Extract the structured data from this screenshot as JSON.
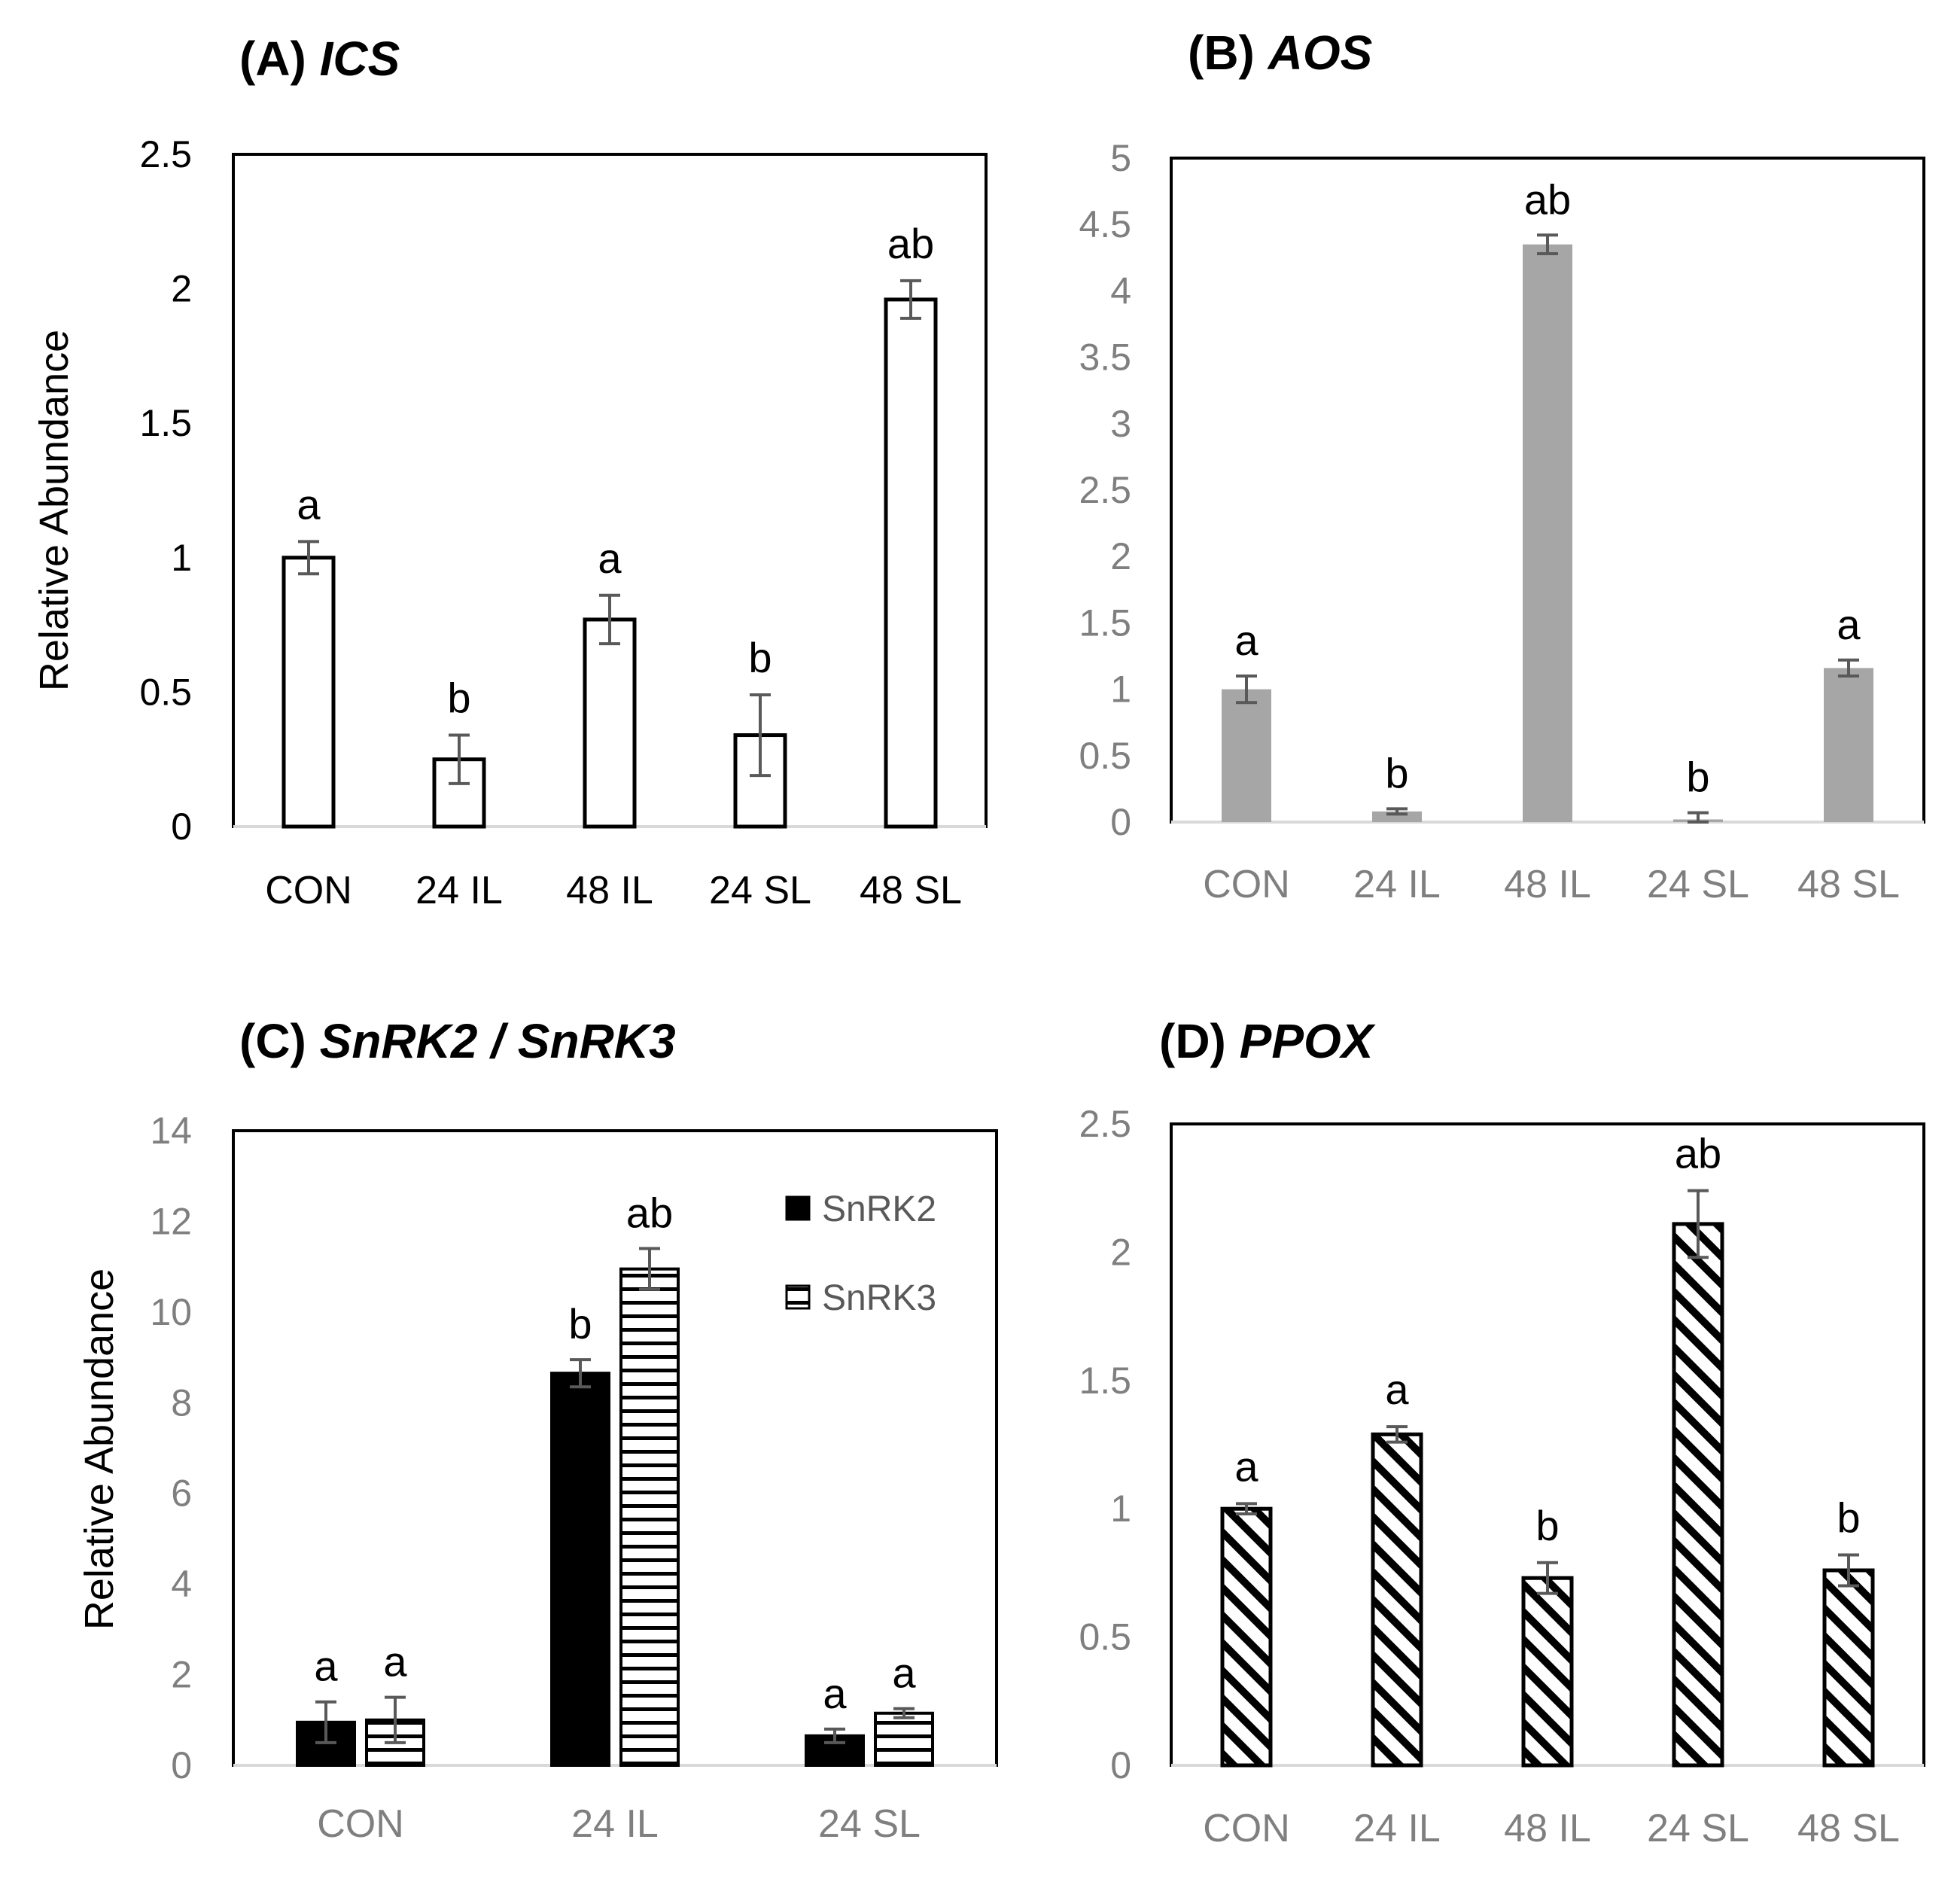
{
  "chart_data": [
    {
      "id": "A",
      "type": "bar",
      "title_prefix": "(A) ",
      "title_gene": "ICS",
      "xlabel": "",
      "ylabel": "Relative Abundance",
      "ylim": [
        0,
        2.5
      ],
      "yticks": [
        "0",
        "0.5",
        "1",
        "1.5",
        "2",
        "2.5"
      ],
      "categories": [
        "CON",
        "24 IL",
        "48 IL",
        "24 SL",
        "48 SL"
      ],
      "series": [
        {
          "name": "ICS",
          "values": [
            1.0,
            0.25,
            0.77,
            0.34,
            1.96
          ],
          "errors": [
            0.06,
            0.09,
            0.09,
            0.15,
            0.07
          ],
          "letters": [
            "a",
            "b",
            "a",
            "b",
            "ab"
          ]
        }
      ],
      "style": "white",
      "label_color": "#000000"
    },
    {
      "id": "B",
      "type": "bar",
      "title_prefix": "(B) ",
      "title_gene": "AOS",
      "xlabel": "",
      "ylabel": "",
      "ylim": [
        0,
        5
      ],
      "yticks": [
        "0",
        "0.5",
        "1",
        "1.5",
        "2",
        "2.5",
        "3",
        "3.5",
        "4",
        "4.5",
        "5"
      ],
      "categories": [
        "CON",
        "24 IL",
        "48 IL",
        "24 SL",
        "48 SL"
      ],
      "series": [
        {
          "name": "AOS",
          "values": [
            1.0,
            0.08,
            4.35,
            0.02,
            1.16
          ],
          "errors": [
            0.1,
            0.02,
            0.07,
            0.05,
            0.06
          ],
          "letters": [
            "a",
            "b",
            "ab",
            "b",
            "a"
          ]
        }
      ],
      "style": "gray",
      "label_color": "#7f7f7f"
    },
    {
      "id": "C",
      "type": "bar",
      "title_prefix": "(C) ",
      "title_gene": "SnRK2 / SnRK3",
      "xlabel": "",
      "ylabel": "Relative Abundance",
      "ylim": [
        0,
        14
      ],
      "yticks": [
        "0",
        "2",
        "4",
        "6",
        "8",
        "10",
        "12",
        "14"
      ],
      "categories": [
        "CON",
        "24 IL",
        "24 SL"
      ],
      "series": [
        {
          "name": "SnRK2",
          "values": [
            0.95,
            8.65,
            0.65
          ],
          "errors": [
            0.45,
            0.3,
            0.15
          ],
          "letters": [
            "a",
            "b",
            "a"
          ]
        },
        {
          "name": "SnRK3",
          "values": [
            1.0,
            10.95,
            1.15
          ],
          "errors": [
            0.5,
            0.45,
            0.1
          ],
          "letters": [
            "a",
            "ab",
            "a"
          ]
        }
      ],
      "legend": {
        "position": "top-right",
        "entries": [
          "SnRK2",
          "SnRK3"
        ]
      },
      "label_color": "#7f7f7f"
    },
    {
      "id": "D",
      "type": "bar",
      "title_prefix": "(D) ",
      "title_gene": "PPOX",
      "xlabel": "",
      "ylabel": "",
      "ylim": [
        0,
        2.5
      ],
      "yticks": [
        "0",
        "0.5",
        "1",
        "1.5",
        "2",
        "2.5"
      ],
      "categories": [
        "CON",
        "24 IL",
        "48 IL",
        "24 SL",
        "48 SL"
      ],
      "series": [
        {
          "name": "PPOX",
          "values": [
            1.0,
            1.29,
            0.73,
            2.11,
            0.76
          ],
          "errors": [
            0.02,
            0.03,
            0.06,
            0.13,
            0.06
          ],
          "letters": [
            "a",
            "a",
            "b",
            "ab",
            "b"
          ]
        }
      ],
      "style": "diagonal",
      "label_color": "#7f7f7f"
    }
  ]
}
